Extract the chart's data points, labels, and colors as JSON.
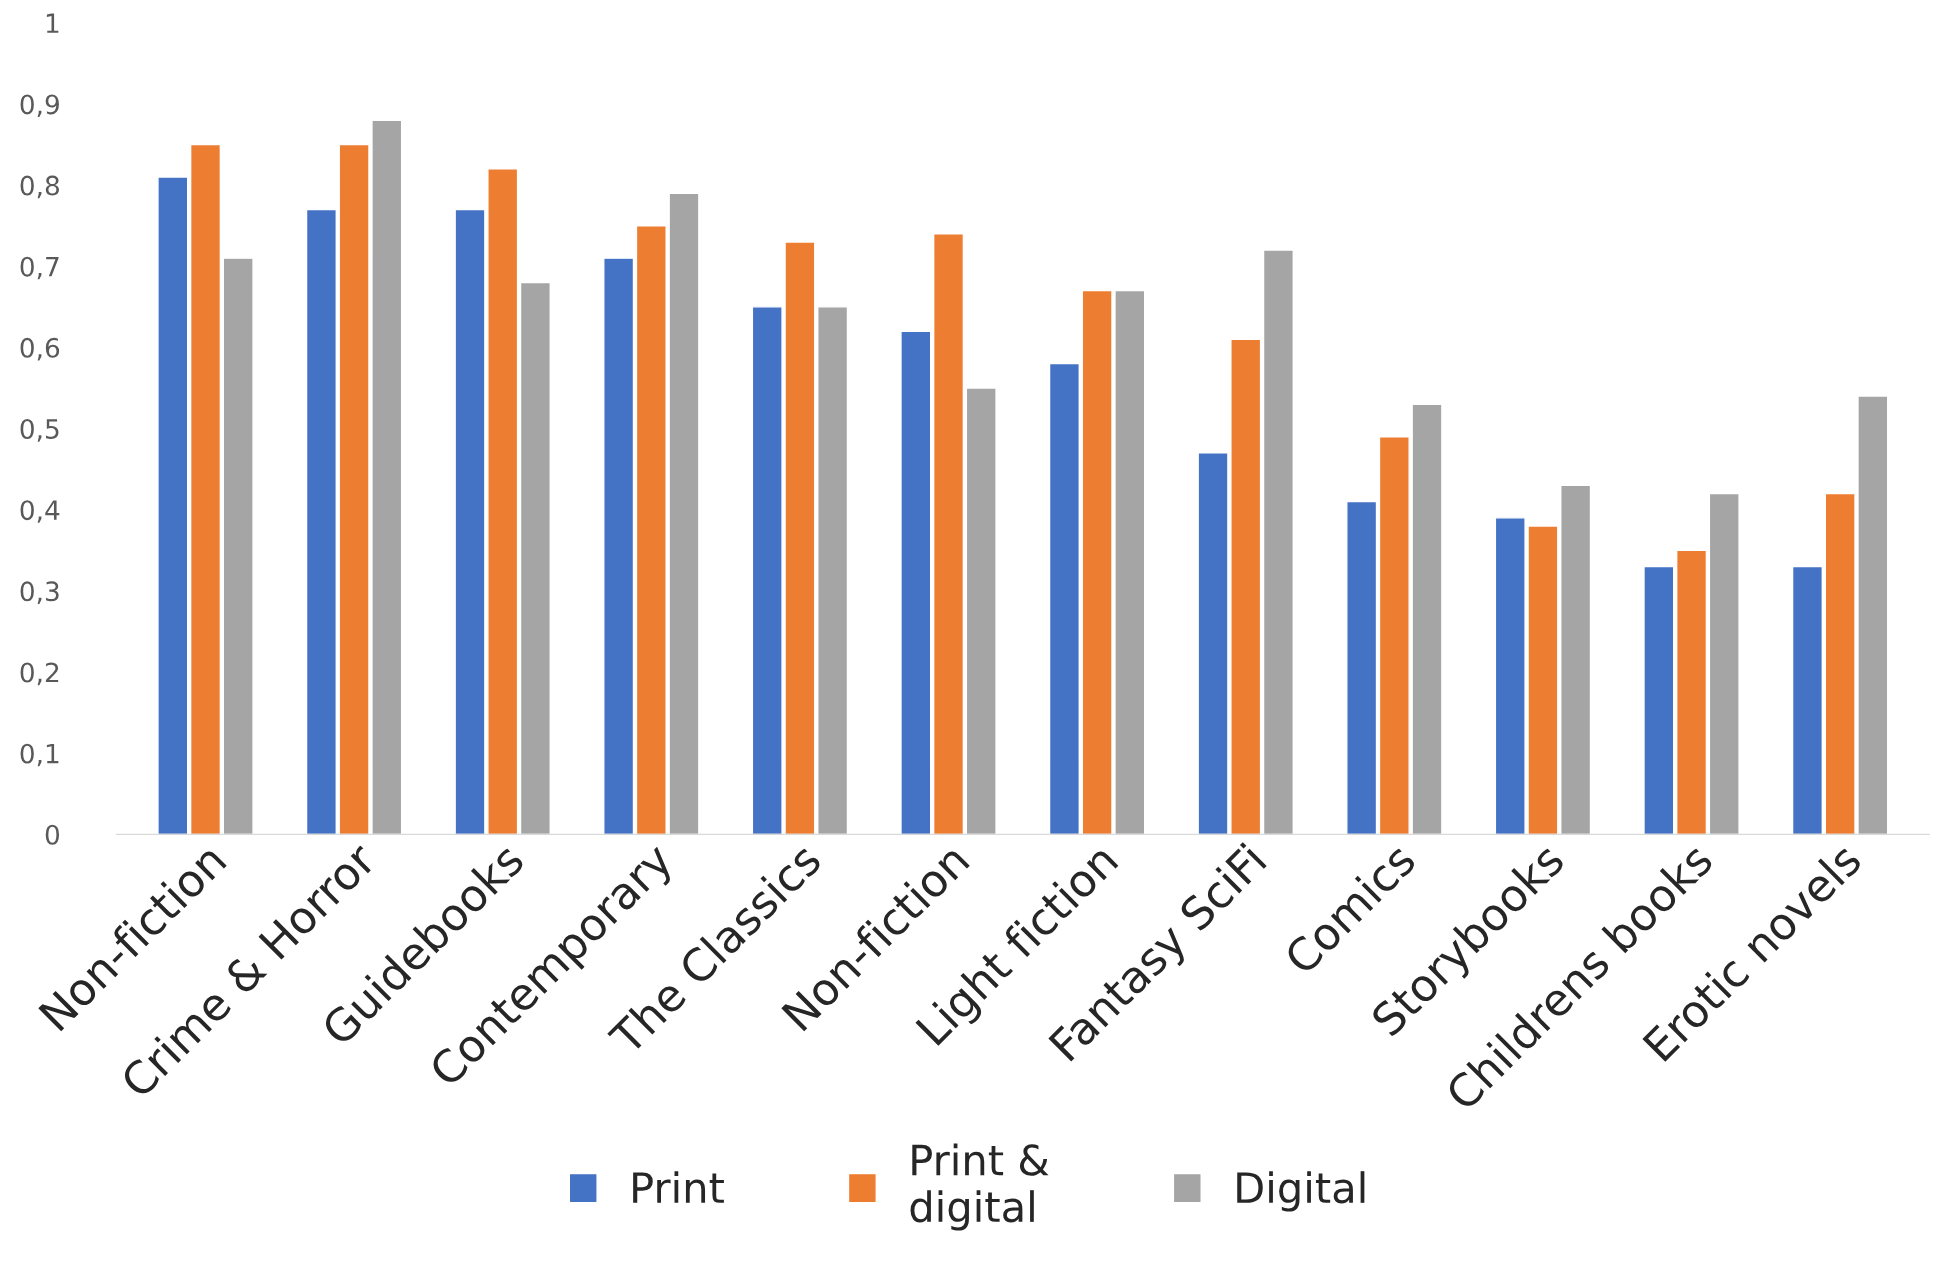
{
  "chart_data": {
    "type": "bar",
    "categories": [
      "Non-fiction",
      "Crime & Horror",
      "Guidebooks",
      "Contemporary",
      "The Classics",
      "Non-fiction",
      "Light fiction",
      "Fantasy SciFi",
      "Comics",
      "Storybooks",
      "Childrens books",
      "Erotic novels"
    ],
    "series": [
      {
        "name": "Print",
        "color": "#4472c4",
        "values": [
          0.81,
          0.77,
          0.77,
          0.71,
          0.65,
          0.62,
          0.58,
          0.47,
          0.41,
          0.39,
          0.33,
          0.33
        ]
      },
      {
        "name": "Print &\ndigital",
        "color": "#ed7d31",
        "values": [
          0.85,
          0.85,
          0.82,
          0.75,
          0.73,
          0.74,
          0.67,
          0.61,
          0.49,
          0.38,
          0.35,
          0.42
        ]
      },
      {
        "name": "Digital",
        "color": "#a5a5a5",
        "values": [
          0.71,
          0.88,
          0.68,
          0.79,
          0.65,
          0.55,
          0.67,
          0.72,
          0.53,
          0.43,
          0.42,
          0.54
        ]
      }
    ],
    "ylim": [
      0,
      1
    ],
    "yticks": [
      0,
      {
        "value": 0.1,
        "label": "0,1"
      },
      {
        "value": 0.2,
        "label": "0,2"
      },
      {
        "value": 0.3,
        "label": "0,3"
      },
      {
        "value": 0.4,
        "label": "0,4"
      },
      {
        "value": 0.5,
        "label": "0,5"
      },
      {
        "value": 0.6,
        "label": "0,6"
      },
      {
        "value": 0.7,
        "label": "0,7"
      },
      {
        "value": 0.8,
        "label": "0,8"
      },
      {
        "value": 0.9,
        "label": "0,9"
      },
      1
    ],
    "grid": false,
    "legend": "bottom"
  }
}
